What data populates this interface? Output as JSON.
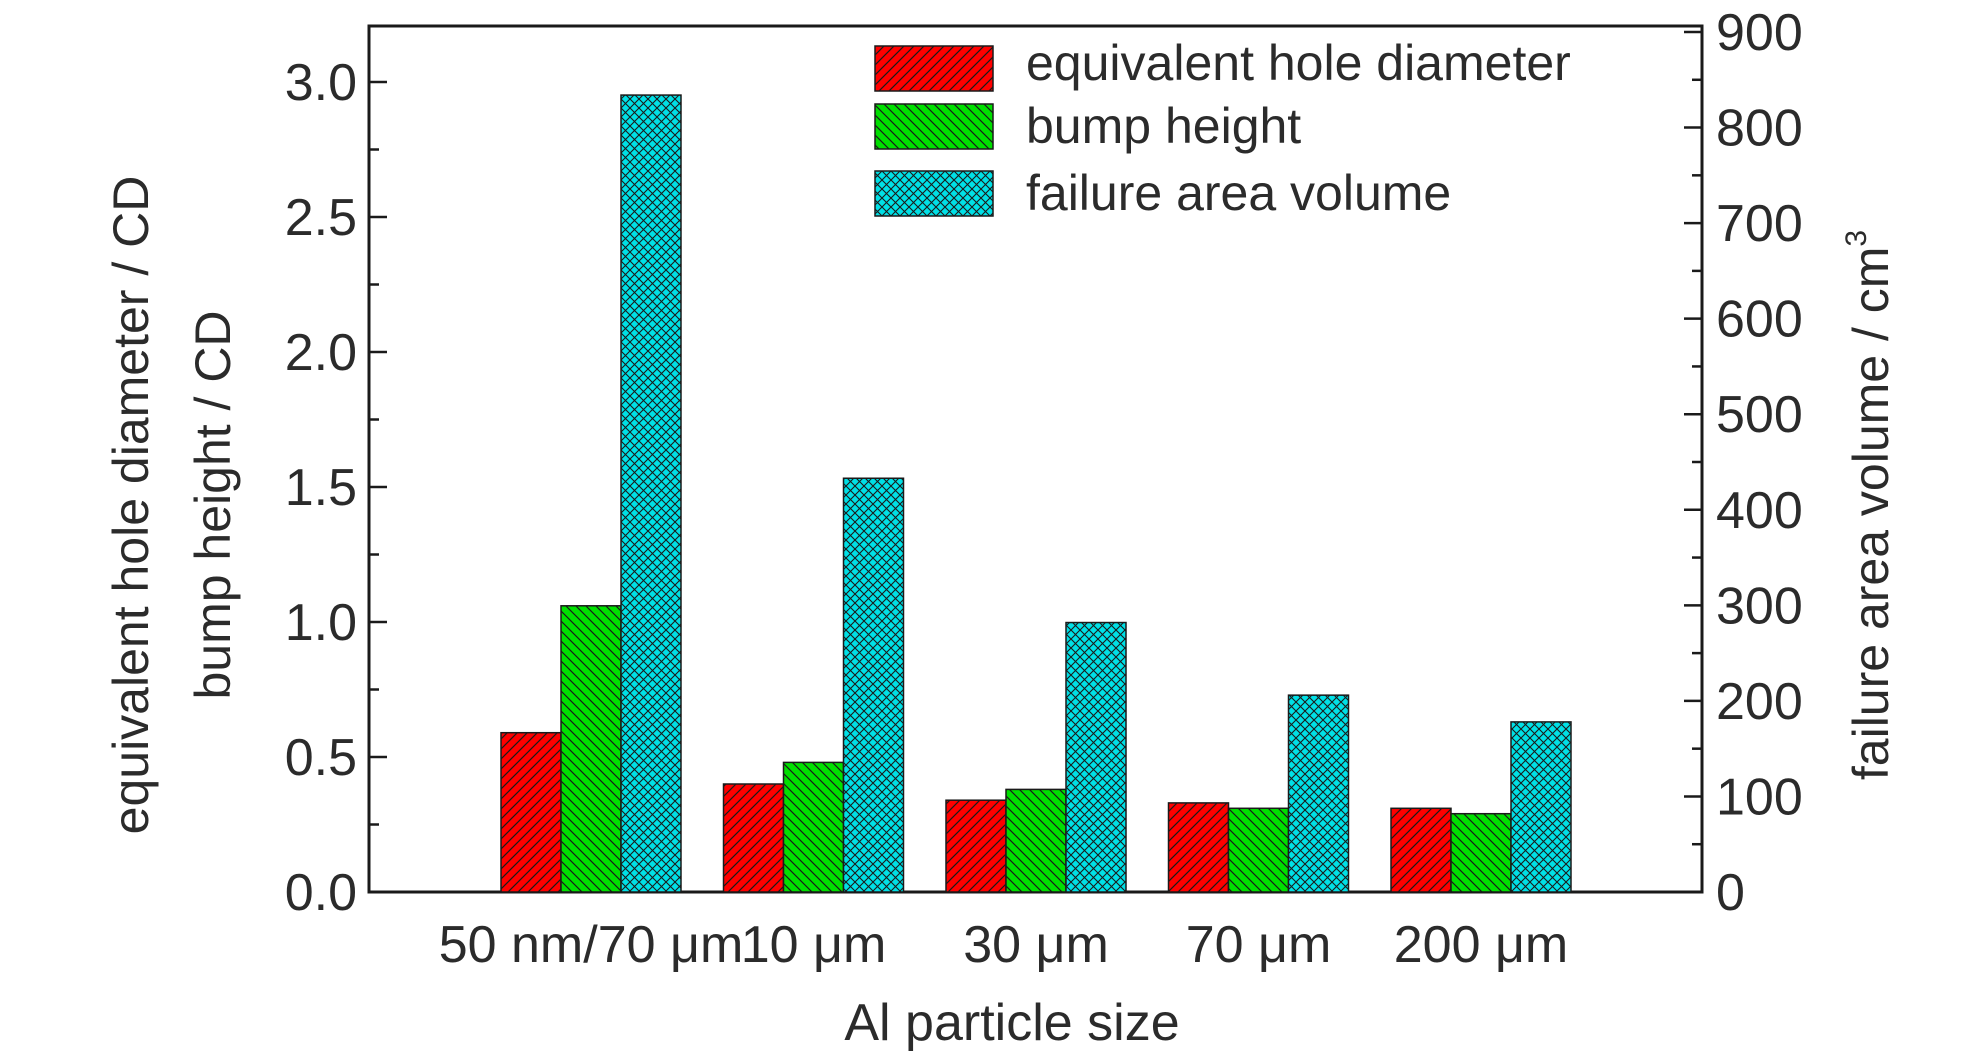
{
  "chart_data": {
    "type": "bar",
    "categories": [
      "50 nm/70 μm",
      "10 μm",
      "30 μm",
      "70 μm",
      "200 μm"
    ],
    "series": [
      {
        "name": "equivalent hole diameter",
        "axis": "left",
        "color": "#ff0000",
        "hatch": "diagonal-left",
        "values": [
          0.59,
          0.4,
          0.34,
          0.33,
          0.31
        ]
      },
      {
        "name": "bump height",
        "axis": "left",
        "color": "#00e000",
        "hatch": "diagonal-right",
        "values": [
          1.06,
          0.48,
          0.38,
          0.31,
          0.29
        ]
      },
      {
        "name": "failure area volume",
        "axis": "right",
        "color": "#00e0e6",
        "hatch": "cross",
        "values": [
          834,
          433,
          282,
          206,
          178
        ]
      }
    ],
    "xlabel": "Al particle size",
    "ylabel_left_line1": "equivalent hole diameter / CD",
    "ylabel_left_line2": "bump height / CD",
    "ylabel_right": "failure area volume / cm",
    "ylabel_right_sup": "3",
    "ylim_left": [
      0,
      3.2
    ],
    "yticks_left": [
      "0.0",
      "0.5",
      "1.0",
      "1.5",
      "2.0",
      "2.5",
      "3.0"
    ],
    "ylim_right": [
      0,
      900
    ],
    "yticks_right": [
      "0",
      "100",
      "200",
      "300",
      "400",
      "500",
      "600",
      "700",
      "800",
      "900"
    ],
    "grid": false,
    "legend_position": "top-right"
  }
}
